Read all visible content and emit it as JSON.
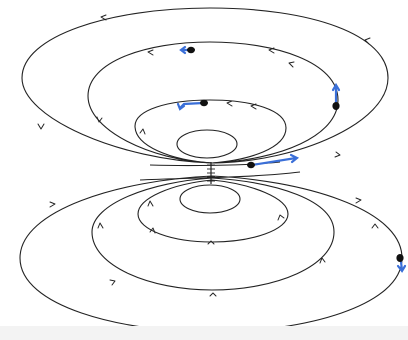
{
  "figure": {
    "description_colors": {
      "field_lines": "#222222",
      "particles": "#111111",
      "vectors": "#3a6fd8"
    },
    "upper_lobe": {
      "loops": [
        {
          "name": "outer",
          "direction": "clockwise"
        },
        {
          "name": "middle",
          "direction": "counterclockwise"
        },
        {
          "name": "inner",
          "direction": "counterclockwise"
        },
        {
          "name": "innermost",
          "direction": "none"
        }
      ]
    },
    "lower_lobe": {
      "loops": [
        {
          "name": "outer",
          "direction": "counterclockwise"
        },
        {
          "name": "middle",
          "direction": "counterclockwise"
        },
        {
          "name": "inner",
          "direction": "counterclockwise"
        },
        {
          "name": "innermost",
          "direction": "none"
        }
      ]
    },
    "particles": [
      {
        "id": "p1",
        "vector": "left"
      },
      {
        "id": "p2",
        "vector": "left-down"
      },
      {
        "id": "p3",
        "vector": "up"
      },
      {
        "id": "p4",
        "vector": "right"
      },
      {
        "id": "p5",
        "vector": "down"
      }
    ]
  }
}
